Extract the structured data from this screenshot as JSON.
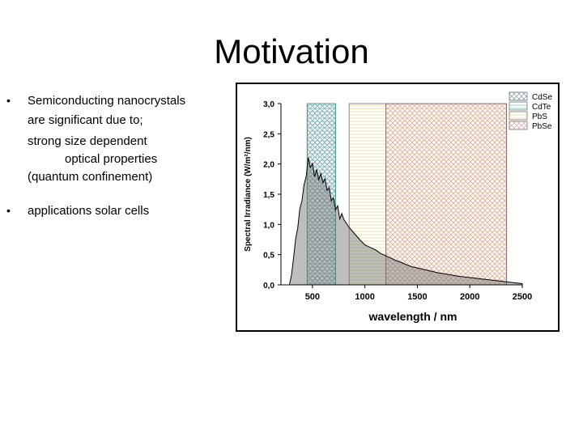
{
  "slide": {
    "title": "Motivation",
    "bullets": [
      {
        "lines": [
          "Semiconducting nanocrystals",
          "are significant due to;",
          "strong size dependent",
          "optical properties",
          "(quantum  confinement)"
        ]
      },
      {
        "lines": [
          "applications  solar cells"
        ]
      }
    ],
    "bullet_symbol": "•"
  },
  "chart_data": {
    "type": "area",
    "title": "",
    "xlabel": "wavelength / nm",
    "ylabel": "Spectral Irradiance (W/m²/nm)",
    "xlim": [
      200,
      2500
    ],
    "ylim": [
      0,
      3.0
    ],
    "x_ticks": [
      "500",
      "1000",
      "1500",
      "2000",
      "2500"
    ],
    "y_ticks": [
      "0,0",
      "0,5",
      "1,0",
      "1,5",
      "2,0",
      "2,5",
      "3,0"
    ],
    "spectrum": {
      "name": "Solar spectrum",
      "x": [
        280,
        300,
        320,
        340,
        360,
        380,
        400,
        420,
        440,
        460,
        480,
        500,
        520,
        540,
        560,
        580,
        600,
        620,
        640,
        660,
        680,
        700,
        720,
        740,
        760,
        780,
        800,
        850,
        900,
        950,
        1000,
        1050,
        1100,
        1150,
        1200,
        1250,
        1300,
        1350,
        1400,
        1450,
        1500,
        1600,
        1700,
        1800,
        1900,
        2000,
        2100,
        2200,
        2300,
        2400,
        2500
      ],
      "y": [
        0.0,
        0.1,
        0.5,
        0.7,
        1.0,
        1.2,
        1.45,
        1.6,
        1.85,
        2.05,
        2.0,
        1.95,
        1.85,
        1.85,
        1.8,
        1.78,
        1.75,
        1.7,
        1.62,
        1.55,
        1.45,
        1.38,
        1.3,
        1.25,
        1.15,
        1.12,
        1.08,
        0.95,
        0.85,
        0.75,
        0.66,
        0.62,
        0.58,
        0.52,
        0.48,
        0.44,
        0.4,
        0.37,
        0.33,
        0.3,
        0.28,
        0.24,
        0.2,
        0.17,
        0.14,
        0.12,
        0.1,
        0.08,
        0.06,
        0.04,
        0.02
      ]
    },
    "bands": [
      {
        "name": "CdSe",
        "range": [
          450,
          720
        ],
        "color": "#8aa3b3",
        "pattern": "cross"
      },
      {
        "name": "CdTe",
        "range": [
          450,
          720
        ],
        "color": "#7fc8b8",
        "pattern": "horizontal"
      },
      {
        "name": "PbS",
        "range": [
          850,
          2350
        ],
        "color": "#e3d98a",
        "pattern": "horizontal"
      },
      {
        "name": "PbSe",
        "range": [
          1200,
          2350
        ],
        "color": "#d9a5a5",
        "pattern": "cross"
      }
    ],
    "legend": {
      "placement": "top-right",
      "entries": [
        "CdSe",
        "CdTe",
        "PbS",
        "PbSe"
      ]
    }
  }
}
